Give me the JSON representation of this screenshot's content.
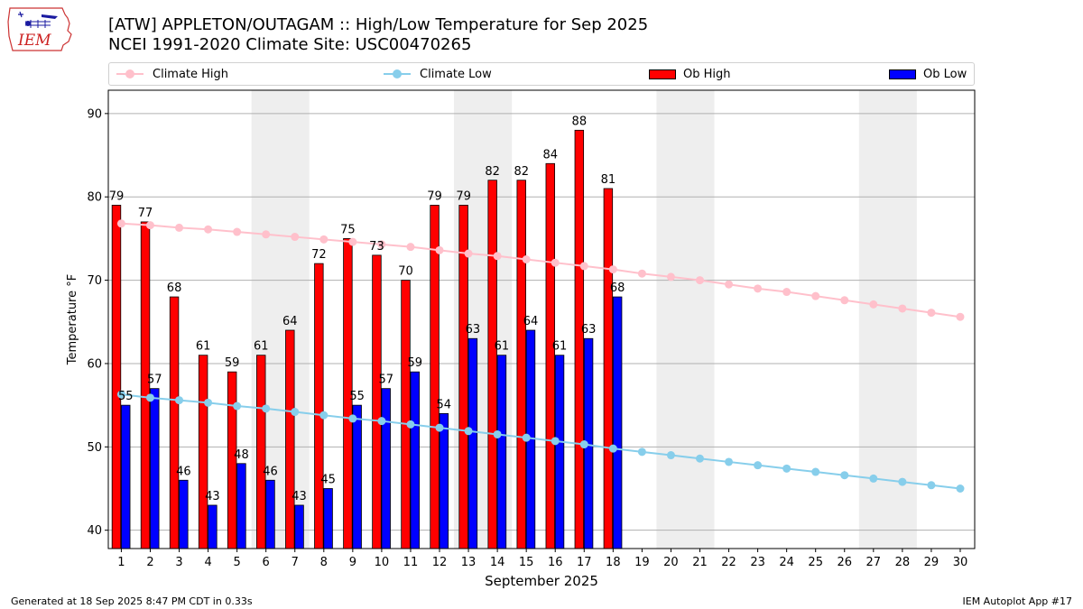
{
  "logo": {
    "text": "IEM"
  },
  "title_line1": "[ATW] APPLETON/OUTAGAM :: High/Low Temperature for Sep 2025",
  "title_line2": "NCEI 1991-2020 Climate Site: USC00470265",
  "legend": {
    "climate_high": "Climate High",
    "climate_low": "Climate Low",
    "ob_high": "Ob High",
    "ob_low": "Ob Low"
  },
  "colors": {
    "climate_high": "#ffc0cb",
    "climate_low": "#87ceeb",
    "ob_high": "#ff0000",
    "ob_low": "#0000ff",
    "weekend_band": "#eeeeee",
    "grid": "#b0b0b0"
  },
  "footer_left": "Generated at 18 Sep 2025 8:47 PM CDT in 0.33s",
  "footer_right": "IEM Autoplot App #17",
  "chart_data": {
    "type": "bar",
    "xlabel": "September 2025",
    "ylabel": "Temperature °F",
    "ylim": [
      37.8,
      92.8
    ],
    "xlim": [
      0.55,
      30.5
    ],
    "yticks": [
      40,
      50,
      60,
      70,
      80,
      90
    ],
    "grid": "y",
    "legend_position": "top",
    "days": [
      1,
      2,
      3,
      4,
      5,
      6,
      7,
      8,
      9,
      10,
      11,
      12,
      13,
      14,
      15,
      16,
      17,
      18,
      19,
      20,
      21,
      22,
      23,
      24,
      25,
      26,
      27,
      28,
      29,
      30
    ],
    "weekend_bands": [
      [
        6,
        7
      ],
      [
        13,
        14
      ],
      [
        20,
        21
      ],
      [
        27,
        28
      ]
    ],
    "series": [
      {
        "name": "Ob High",
        "kind": "bar",
        "values": [
          79,
          77,
          68,
          61,
          59,
          61,
          64,
          72,
          75,
          73,
          70,
          79,
          79,
          82,
          82,
          84,
          88,
          81
        ]
      },
      {
        "name": "Ob Low",
        "kind": "bar",
        "values": [
          55,
          57,
          46,
          43,
          48,
          46,
          43,
          45,
          55,
          57,
          59,
          54,
          63,
          61,
          64,
          61,
          63,
          68
        ]
      },
      {
        "name": "Climate High",
        "kind": "line",
        "values": [
          76.8,
          76.6,
          76.3,
          76.1,
          75.8,
          75.5,
          75.2,
          74.9,
          74.6,
          74.3,
          74.0,
          73.6,
          73.2,
          72.9,
          72.5,
          72.1,
          71.7,
          71.3,
          70.8,
          70.4,
          70.0,
          69.5,
          69.0,
          68.6,
          68.1,
          67.6,
          67.1,
          66.6,
          66.1,
          65.6
        ]
      },
      {
        "name": "Climate Low",
        "kind": "line",
        "values": [
          56.3,
          55.9,
          55.6,
          55.3,
          54.9,
          54.6,
          54.2,
          53.8,
          53.4,
          53.1,
          52.7,
          52.3,
          51.9,
          51.5,
          51.1,
          50.7,
          50.3,
          49.8,
          49.4,
          49.0,
          48.6,
          48.2,
          47.8,
          47.4,
          47.0,
          46.6,
          46.2,
          45.8,
          45.4,
          45.0
        ]
      }
    ]
  }
}
